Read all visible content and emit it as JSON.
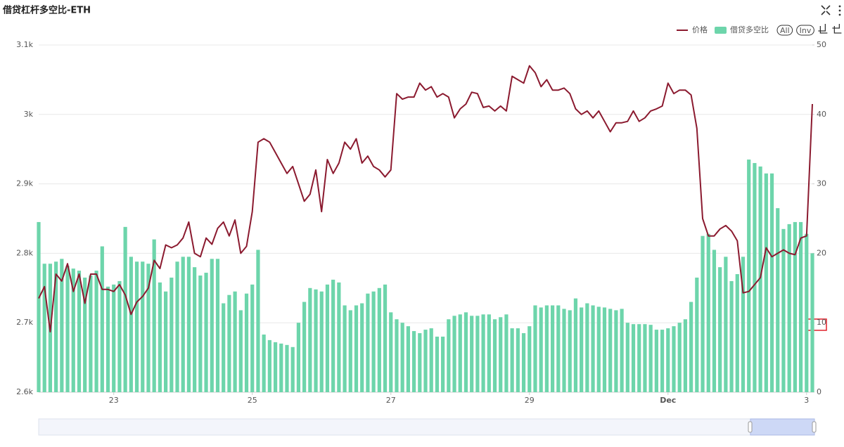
{
  "chart_data": {
    "type": "bar-line",
    "title": "借贷杠杆多空比-ETH",
    "categories": [
      null,
      null,
      null,
      null,
      null,
      null,
      null,
      null,
      null,
      null,
      null,
      null,
      null,
      "23",
      null,
      null,
      null,
      null,
      null,
      null,
      null,
      null,
      null,
      null,
      null,
      null,
      null,
      null,
      null,
      null,
      null,
      null,
      null,
      null,
      null,
      null,
      null,
      "25",
      null,
      null,
      null,
      null,
      null,
      null,
      null,
      null,
      null,
      null,
      null,
      null,
      null,
      null,
      null,
      null,
      null,
      null,
      null,
      null,
      null,
      null,
      null,
      "27",
      null,
      null,
      null,
      null,
      null,
      null,
      null,
      null,
      null,
      null,
      null,
      null,
      null,
      null,
      null,
      null,
      null,
      null,
      null,
      null,
      null,
      null,
      null,
      "29",
      null,
      null,
      null,
      null,
      null,
      null,
      null,
      null,
      null,
      null,
      null,
      null,
      null,
      null,
      null,
      null,
      null,
      null,
      null,
      null,
      null,
      null,
      null,
      "Dec",
      null,
      null,
      null,
      null,
      null,
      null,
      null,
      null,
      null,
      null,
      null,
      null,
      null,
      null,
      null,
      null,
      null,
      null,
      null,
      null,
      null,
      null,
      null,
      "3",
      null
    ],
    "series": [
      {
        "name": "价格",
        "type": "line",
        "color": "#8b1a2f",
        "axis": "y",
        "values": [
          2735,
          2752,
          2687,
          2770,
          2760,
          2785,
          2745,
          2770,
          2728,
          2770,
          2770,
          2748,
          2748,
          2745,
          2755,
          2740,
          2712,
          2730,
          2738,
          2750,
          2790,
          2778,
          2812,
          2808,
          2812,
          2822,
          2845,
          2800,
          2795,
          2822,
          2813,
          2836,
          2845,
          2825,
          2848,
          2800,
          2810,
          2860,
          2960,
          2965,
          2960,
          2945,
          2930,
          2915,
          2925,
          2900,
          2875,
          2885,
          2920,
          2860,
          2935,
          2915,
          2930,
          2960,
          2950,
          2965,
          2930,
          2940,
          2925,
          2920,
          2910,
          2920,
          3030,
          3022,
          3025,
          3025,
          3045,
          3035,
          3040,
          3025,
          3030,
          3025,
          2995,
          3008,
          3015,
          3032,
          3030,
          3010,
          3012,
          3005,
          3012,
          3005,
          3055,
          3050,
          3045,
          3070,
          3060,
          3040,
          3050,
          3035,
          3035,
          3038,
          3030,
          3008,
          3000,
          3005,
          2995,
          3005,
          2990,
          2975,
          2988,
          2988,
          2990,
          3005,
          2990,
          2995,
          3005,
          3008,
          3012,
          3045,
          3030,
          3035,
          3035,
          3028,
          2980,
          2850,
          2825,
          2825,
          2835,
          2840,
          2832,
          2818,
          2743,
          2745,
          2755,
          2765,
          2808,
          2795,
          2800,
          2805,
          2800,
          2798,
          2822,
          2825,
          3015
        ]
      },
      {
        "name": "借贷多空比",
        "type": "bar",
        "color": "#6dd5ab",
        "axis": "y2",
        "values": [
          24.5,
          18.5,
          18.5,
          18.8,
          19.2,
          18.2,
          17.8,
          17.5,
          16.5,
          16.8,
          17.5,
          21,
          15.2,
          15.5,
          16,
          23.8,
          19.5,
          18.8,
          18.8,
          18.5,
          22,
          15.8,
          14.5,
          16.5,
          18.8,
          19.5,
          19.5,
          18,
          16.8,
          17.2,
          19.2,
          19.2,
          12.8,
          14,
          14.5,
          11.8,
          14.2,
          15.5,
          20.5,
          8.3,
          7.5,
          7.2,
          7,
          6.8,
          6.5,
          10,
          13,
          15,
          14.8,
          14.5,
          15.5,
          16.2,
          15.8,
          12.5,
          11.8,
          12.5,
          12.8,
          14.2,
          14.5,
          15,
          15.5,
          11.5,
          10.5,
          10,
          9.5,
          8.8,
          8.5,
          9,
          9.2,
          8,
          8,
          10.5,
          11,
          11.2,
          11.5,
          11,
          11,
          11.2,
          11.2,
          10.5,
          10.8,
          11.2,
          9.2,
          9.2,
          8.5,
          9.5,
          12.5,
          12.2,
          12.5,
          12.5,
          12.5,
          12,
          11.8,
          13.5,
          12.2,
          12.8,
          12.5,
          12.3,
          12.2,
          12,
          11.8,
          12,
          10,
          9.8,
          9.8,
          9.8,
          9.7,
          9,
          9,
          9.2,
          9.5,
          10,
          10.5,
          13,
          16.5,
          22.5,
          22.8,
          20.5,
          18,
          19.5,
          16,
          17,
          19.5,
          33.5,
          33,
          32.5,
          31.5,
          31.5,
          26.5,
          23.5,
          24.2,
          24.5,
          24.5,
          22.8,
          20
        ]
      }
    ],
    "ylim": [
      2600,
      3100
    ],
    "yticks": [
      {
        "value": 2600,
        "label": "2.6k"
      },
      {
        "value": 2700,
        "label": "2.7k"
      },
      {
        "value": 2800,
        "label": "2.8k"
      },
      {
        "value": 2900,
        "label": "2.9k"
      },
      {
        "value": 3000,
        "label": "3k"
      },
      {
        "value": 3100,
        "label": "3.1k"
      }
    ],
    "y2lim": [
      0,
      50
    ],
    "y2ticks": [
      0,
      10,
      20,
      30,
      40,
      50
    ],
    "grid": true,
    "legend": "top-right"
  },
  "toolbar": {
    "buttons": [
      "All",
      "Inv"
    ]
  }
}
